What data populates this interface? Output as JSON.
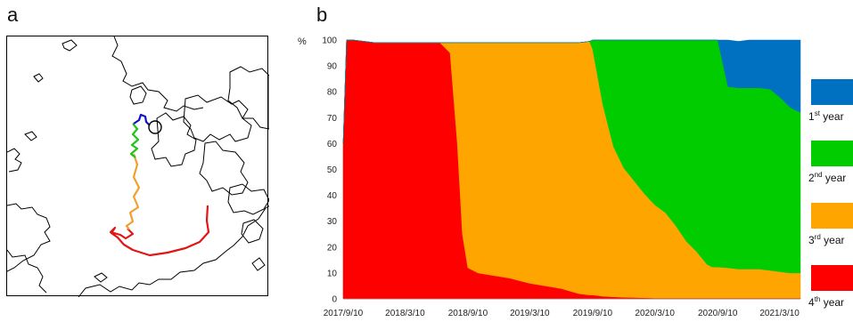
{
  "panels": {
    "a_letter": "a",
    "b_letter": "b"
  },
  "map": {
    "track_colors": [
      "#1010c8",
      "#22c41a",
      "#f0a030",
      "#e01616"
    ],
    "coast_color": "#000000"
  },
  "chart_data": {
    "type": "area",
    "stacked": true,
    "ylabel": "%",
    "ylim": [
      0,
      100
    ],
    "yticks": [
      0,
      10,
      20,
      30,
      40,
      50,
      60,
      70,
      80,
      90,
      100
    ],
    "xticks": [
      "2017/9/10",
      "2018/3/10",
      "2018/9/10",
      "2019/3/10",
      "2019/9/10",
      "2020/3/10",
      "2020/9/10",
      "2021/3/10"
    ],
    "x": [
      "2017/9/10",
      "2017/9/20",
      "2017/10/10",
      "2017/12/10",
      "2018/3/10",
      "2018/6/20",
      "2018/7/20",
      "2018/8/10",
      "2018/8/25",
      "2018/9/10",
      "2018/10/10",
      "2019/1/10",
      "2019/3/10",
      "2019/6/10",
      "2019/8/1",
      "2019/9/1",
      "2019/9/10",
      "2019/10/10",
      "2019/11/10",
      "2019/12/10",
      "2020/1/10",
      "2020/2/10",
      "2020/3/10",
      "2020/4/10",
      "2020/5/10",
      "2020/6/10",
      "2020/7/10",
      "2020/8/10",
      "2020/8/25",
      "2020/9/10",
      "2020/10/10",
      "2020/11/10",
      "2020/12/10",
      "2021/1/10",
      "2021/2/10",
      "2021/3/10",
      "2021/4/10",
      "2021/5/10"
    ],
    "series": [
      {
        "name": "4th year",
        "color": "#ff0000",
        "values": [
          60,
          100,
          100,
          99,
          99,
          99,
          95,
          60,
          25,
          12,
          10,
          8,
          6,
          4,
          2,
          1.5,
          1.5,
          1,
          0.8,
          0.6,
          0.5,
          0.4,
          0.3,
          0.3,
          0.3,
          0.3,
          0.3,
          0.3,
          0.3,
          0.3,
          0.3,
          0.3,
          0.3,
          0.3,
          0.3,
          0.3,
          0.3,
          0.3
        ]
      },
      {
        "name": "3rd year",
        "color": "#ffa500",
        "values": [
          0,
          0,
          0,
          0,
          0,
          0,
          4,
          39,
          74,
          87,
          89,
          91,
          93,
          95,
          97,
          98,
          95,
          74,
          58,
          50,
          45,
          40,
          36,
          33,
          28,
          22,
          18,
          13,
          12,
          12,
          11.7,
          11.2,
          11.2,
          11.2,
          10.7,
          10.2,
          9.7,
          9.7
        ]
      },
      {
        "name": "2nd year",
        "color": "#00cc00",
        "values": [
          0,
          0,
          0,
          0,
          0,
          0,
          0,
          0,
          0,
          0,
          0,
          0,
          0,
          0,
          0,
          0,
          3.5,
          25,
          41.2,
          49.4,
          54.5,
          59.6,
          63.7,
          66.7,
          71.7,
          77.7,
          81.7,
          86.7,
          87.7,
          87.7,
          70,
          70,
          70,
          70,
          70,
          67.5,
          64,
          62
        ]
      },
      {
        "name": "1st year",
        "color": "#0070c0",
        "values": [
          0,
          0,
          0,
          0,
          0,
          0,
          0,
          0,
          0,
          0,
          0,
          0,
          0,
          0,
          0,
          0,
          0,
          0,
          0,
          0,
          0,
          0,
          0,
          0,
          0,
          0,
          0,
          0,
          0,
          0,
          18,
          18,
          18.5,
          18.5,
          19,
          22,
          26,
          28
        ]
      }
    ],
    "legend": [
      {
        "prefix": "1",
        "sup": "st",
        "suffix": " year",
        "color": "#0070c0"
      },
      {
        "prefix": "2",
        "sup": "nd",
        "suffix": " year",
        "color": "#00cc00"
      },
      {
        "prefix": "3",
        "sup": "rd",
        "suffix": " year",
        "color": "#ffa500"
      },
      {
        "prefix": "4",
        "sup": "th",
        "suffix": " year",
        "color": "#ff0000"
      }
    ],
    "legend_position": "right"
  }
}
